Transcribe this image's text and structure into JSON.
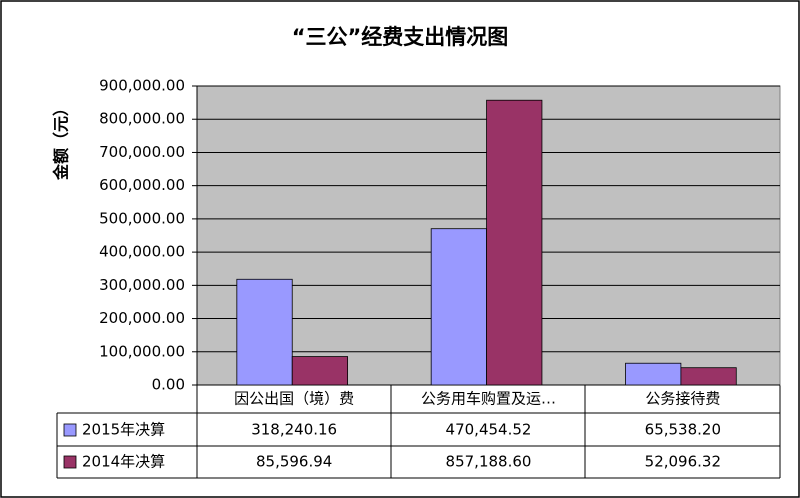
{
  "chart_data": {
    "type": "bar",
    "title": "“三公”经费支出情况图",
    "y_label": "金额（元）",
    "categories": [
      "因公出国（境）费",
      "公务用车购置及运…",
      "公务接待费"
    ],
    "series": [
      {
        "name": "2015年决算",
        "color": "#9999ff",
        "values": [
          318240.16,
          470454.52,
          65538.2
        ],
        "value_labels": [
          "318,240.16",
          "470,454.52",
          "65,538.20"
        ]
      },
      {
        "name": "2014年决算",
        "color": "#993366",
        "values": [
          85596.94,
          857188.6,
          52096.32
        ],
        "value_labels": [
          "85,596.94",
          "857,188.60",
          "52,096.32"
        ]
      }
    ],
    "ylim": [
      0,
      900000
    ],
    "yticks": [
      {
        "value": 0,
        "label": "0.00"
      },
      {
        "value": 100000,
        "label": "100,000.00"
      },
      {
        "value": 200000,
        "label": "200,000.00"
      },
      {
        "value": 300000,
        "label": "300,000.00"
      },
      {
        "value": 400000,
        "label": "400,000.00"
      },
      {
        "value": 500000,
        "label": "500,000.00"
      },
      {
        "value": 600000,
        "label": "600,000.00"
      },
      {
        "value": 700000,
        "label": "700,000.00"
      },
      {
        "value": 800000,
        "label": "800,000.00"
      },
      {
        "value": 900000,
        "label": "900,000.00"
      }
    ],
    "grid": true,
    "plot_background": "#c0c0c0"
  }
}
